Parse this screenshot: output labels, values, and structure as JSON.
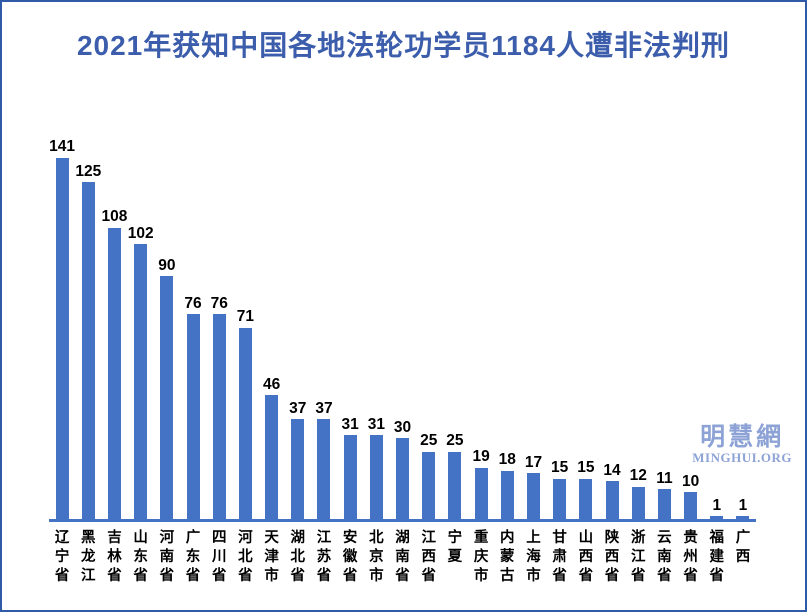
{
  "header": {
    "title": "2021年获知中国各地法轮功学员1184人遭非法判刑"
  },
  "watermark": {
    "cjk": "明慧網",
    "latin": "MINGHUI.ORG"
  },
  "colors": {
    "background": "#FFFFFF",
    "frame_border": "#2F5AA7",
    "title": "#3B5DAB",
    "bar": "#4472C4",
    "axis_line": "#4472C4",
    "value_label": "#000000",
    "category_label": "#000000",
    "watermark": "#8DA3D6"
  },
  "chart_data": {
    "type": "bar",
    "title": "2021年获知中国各地法轮功学员1184人遭非法判刑",
    "categories": [
      "辽宁省",
      "黑龙江",
      "吉林省",
      "山东省",
      "河南省",
      "广东省",
      "四川省",
      "河北省",
      "天津市",
      "湖北省",
      "江苏省",
      "安徽省",
      "北京市",
      "湖南省",
      "江西省",
      "宁夏",
      "重庆市",
      "内蒙古",
      "上海市",
      "甘肃省",
      "山西省",
      "陕西省",
      "浙江省",
      "云南省",
      "贵州省",
      "福建省",
      "广西"
    ],
    "values": [
      141,
      125,
      108,
      102,
      90,
      76,
      76,
      71,
      46,
      37,
      37,
      31,
      31,
      30,
      25,
      25,
      19,
      18,
      17,
      15,
      15,
      14,
      12,
      11,
      10,
      1,
      1
    ],
    "xlabel": "",
    "ylabel": "",
    "ylim": [
      0,
      141
    ],
    "grid": false,
    "legend": "none",
    "data_labels": true,
    "category_label_orientation": "vertical-text"
  }
}
